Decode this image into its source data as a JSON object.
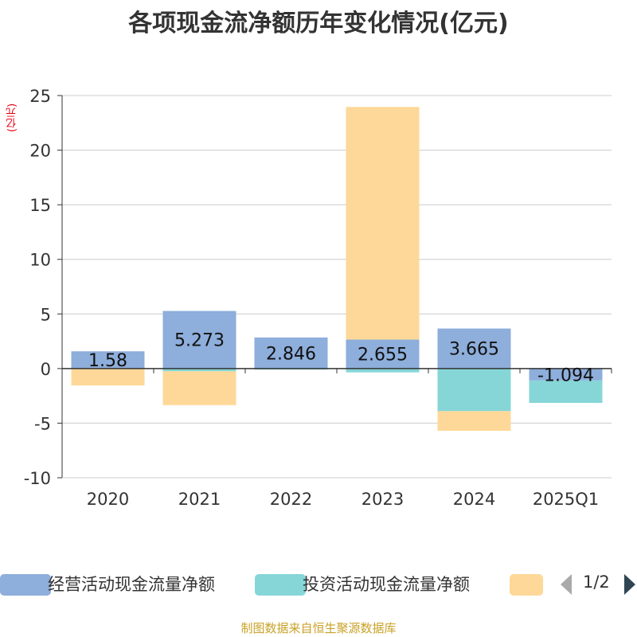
{
  "title": "各项现金流净额历年变化情况(亿元)",
  "unit_label": "(亿元)",
  "footer": "制图数据来自恒生聚源数据库",
  "pager": {
    "text": "1/2"
  },
  "colors": {
    "operating": "#8eaedb",
    "investing": "#86d6d8",
    "financing": "#fed898"
  },
  "chart_data": {
    "type": "bar",
    "stacked": true,
    "categories": [
      "2020",
      "2021",
      "2022",
      "2023",
      "2024",
      "2025Q1"
    ],
    "series": [
      {
        "name": "经营活动现金流量净额",
        "values": [
          1.58,
          5.273,
          2.846,
          2.655,
          3.665,
          -1.094
        ],
        "color": "#8eaedb"
      },
      {
        "name": "投资活动现金流量净额",
        "values": [
          -0.05,
          -0.25,
          -0.1,
          -0.35,
          -3.9,
          -2.05
        ],
        "color": "#86d6d8"
      },
      {
        "name": "",
        "values": [
          -1.5,
          -3.1,
          0,
          21.3,
          -1.8,
          0
        ],
        "color": "#fed898"
      }
    ],
    "data_labels": [
      "1.58",
      "5.273",
      "2.846",
      "2.655",
      "3.665",
      "-1.094"
    ],
    "ylim": [
      -10,
      25
    ],
    "yticks": [
      -10,
      -5,
      0,
      5,
      10,
      15,
      20,
      25
    ],
    "grid": true,
    "legend_position": "bottom"
  }
}
